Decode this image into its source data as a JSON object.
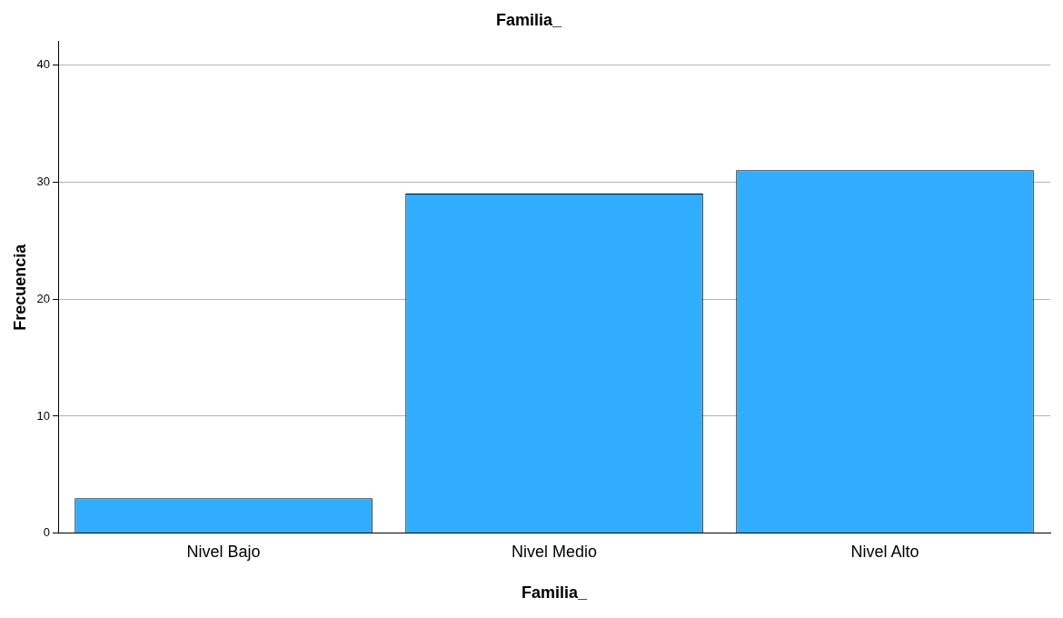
{
  "chart_data": {
    "type": "bar",
    "title": "Familia_",
    "xlabel": "Familia_",
    "ylabel": "Frecuencia",
    "categories": [
      "Nivel Bajo",
      "Nivel Medio",
      "Nivel Alto"
    ],
    "values": [
      3,
      29,
      31
    ],
    "color": "#31adfd",
    "ylim": [
      0,
      42
    ],
    "yticks": [
      0,
      10,
      20,
      30,
      40
    ],
    "grid": "y",
    "legend": false
  }
}
